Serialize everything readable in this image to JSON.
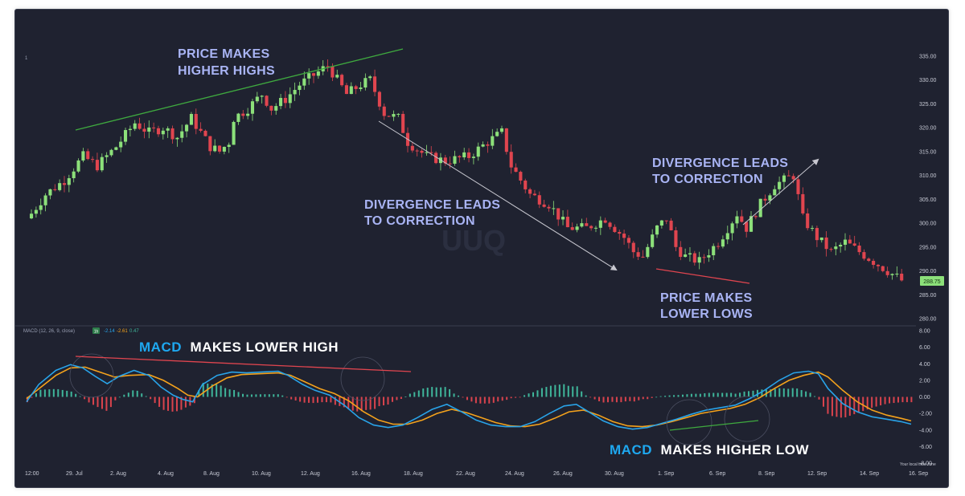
{
  "colors": {
    "background": "#1f2230",
    "up": "#8ce07a",
    "down": "#e0454f",
    "macd_line": "#29a3e8",
    "signal_line": "#f4a21c",
    "hist_up": "#3fb59a",
    "hist_down": "#d9434d",
    "annotation": "#a9b4f4",
    "trend_green": "#3faa3f",
    "trend_red": "#e0454f",
    "arrow": "#c8c8d0"
  },
  "chart_data": [
    {
      "type": "candlestick",
      "ylim": [
        280,
        338
      ],
      "y_ticks": [
        "335.00",
        "330.00",
        "325.00",
        "320.00",
        "315.00",
        "310.00",
        "305.00",
        "300.00",
        "295.00",
        "290.00",
        "285.00",
        "280.00"
      ],
      "price_label": "288.75",
      "close_path": [
        [
          0,
          302
        ],
        [
          3,
          306
        ],
        [
          7,
          309
        ],
        [
          11,
          314
        ],
        [
          14,
          312
        ],
        [
          18,
          316
        ],
        [
          22,
          321
        ],
        [
          25,
          319
        ],
        [
          28,
          320
        ],
        [
          31,
          318
        ],
        [
          34,
          322
        ],
        [
          36,
          319
        ],
        [
          38,
          316
        ],
        [
          40,
          315
        ],
        [
          42,
          317
        ],
        [
          43,
          322
        ],
        [
          46,
          324
        ],
        [
          49,
          327
        ],
        [
          51,
          324
        ],
        [
          54,
          326
        ],
        [
          57,
          329
        ],
        [
          60,
          331
        ],
        [
          63,
          333
        ],
        [
          65,
          330
        ],
        [
          67,
          327
        ],
        [
          70,
          329
        ],
        [
          72,
          330
        ],
        [
          75,
          323
        ],
        [
          78,
          322
        ],
        [
          80,
          317
        ],
        [
          84,
          314
        ],
        [
          88,
          313
        ],
        [
          93,
          314
        ],
        [
          97,
          317
        ],
        [
          100,
          319
        ],
        [
          102,
          312
        ],
        [
          106,
          306
        ],
        [
          110,
          304
        ],
        [
          114,
          299
        ],
        [
          118,
          299
        ],
        [
          122,
          301
        ],
        [
          126,
          297
        ],
        [
          128,
          294
        ],
        [
          130,
          293
        ],
        [
          133,
          299
        ],
        [
          135,
          301
        ],
        [
          137,
          295
        ],
        [
          139,
          293
        ],
        [
          142,
          292
        ],
        [
          146,
          296
        ],
        [
          150,
          302
        ],
        [
          152,
          299
        ],
        [
          155,
          304
        ],
        [
          158,
          308
        ],
        [
          160,
          309
        ],
        [
          162,
          310
        ],
        [
          164,
          301
        ],
        [
          167,
          297
        ],
        [
          170,
          294
        ],
        [
          173,
          296
        ],
        [
          176,
          294
        ],
        [
          179,
          292
        ],
        [
          182,
          290
        ],
        [
          185,
          288
        ]
      ],
      "n_candles": 186
    },
    {
      "type": "line",
      "title": "MACD (12, 26, 9, close)",
      "interval": "1h",
      "readouts": [
        "-2.14",
        "-2.61",
        "0.47"
      ],
      "ylim": [
        -8,
        8
      ],
      "y_ticks": [
        "8.00",
        "6.00",
        "4.00",
        "2.00",
        "0.00",
        "-2.00",
        "-4.00",
        "-6.00",
        "-8.00"
      ],
      "series": [
        {
          "name": "MACD",
          "values": [
            [
              0,
              -0.6
            ],
            [
              5,
              1.5
            ],
            [
              12,
              3.2
            ],
            [
              18,
              3.9
            ],
            [
              23,
              3.5
            ],
            [
              28,
              2.5
            ],
            [
              33,
              1.6
            ],
            [
              38,
              2.5
            ],
            [
              44,
              3.2
            ],
            [
              50,
              2.6
            ],
            [
              55,
              1.2
            ],
            [
              60,
              0.2
            ],
            [
              64,
              -0.3
            ],
            [
              68,
              -0.6
            ],
            [
              72,
              1.5
            ],
            [
              78,
              2.6
            ],
            [
              84,
              3.0
            ],
            [
              90,
              2.9
            ],
            [
              96,
              3.0
            ],
            [
              103,
              3.1
            ],
            [
              107,
              2.6
            ],
            [
              113,
              1.5
            ],
            [
              118,
              0.8
            ],
            [
              124,
              0.2
            ],
            [
              130,
              -1.0
            ],
            [
              136,
              -2.5
            ],
            [
              142,
              -3.4
            ],
            [
              148,
              -3.7
            ],
            [
              154,
              -3.4
            ],
            [
              160,
              -2.5
            ],
            [
              166,
              -1.5
            ],
            [
              172,
              -0.9
            ],
            [
              178,
              -1.8
            ],
            [
              184,
              -2.8
            ],
            [
              190,
              -3.4
            ],
            [
              196,
              -3.6
            ],
            [
              202,
              -3.6
            ],
            [
              208,
              -3.0
            ],
            [
              214,
              -2.0
            ],
            [
              220,
              -1.1
            ],
            [
              225,
              -0.9
            ],
            [
              230,
              -1.8
            ],
            [
              236,
              -2.9
            ],
            [
              242,
              -3.6
            ],
            [
              248,
              -3.9
            ],
            [
              254,
              -3.7
            ],
            [
              260,
              -3.2
            ],
            [
              266,
              -2.7
            ],
            [
              272,
              -2.1
            ],
            [
              278,
              -1.6
            ],
            [
              284,
              -1.3
            ],
            [
              290,
              -1.0
            ],
            [
              296,
              -0.2
            ],
            [
              302,
              0.8
            ],
            [
              308,
              2.0
            ],
            [
              314,
              2.9
            ],
            [
              320,
              3.1
            ],
            [
              324,
              2.8
            ],
            [
              328,
              1.0
            ],
            [
              334,
              -0.8
            ],
            [
              340,
              -1.8
            ],
            [
              346,
              -2.4
            ],
            [
              352,
              -2.7
            ],
            [
              358,
              -3.0
            ],
            [
              362,
              -3.3
            ]
          ]
        },
        {
          "name": "Signal",
          "values": [
            [
              0,
              -0.2
            ],
            [
              6,
              1.2
            ],
            [
              12,
              2.6
            ],
            [
              18,
              3.5
            ],
            [
              24,
              3.6
            ],
            [
              30,
              3.0
            ],
            [
              36,
              2.4
            ],
            [
              42,
              2.6
            ],
            [
              50,
              2.7
            ],
            [
              56,
              2.0
            ],
            [
              62,
              1.0
            ],
            [
              66,
              0.2
            ],
            [
              70,
              0.0
            ],
            [
              76,
              1.3
            ],
            [
              82,
              2.3
            ],
            [
              88,
              2.7
            ],
            [
              96,
              2.8
            ],
            [
              103,
              2.9
            ],
            [
              108,
              2.6
            ],
            [
              114,
              1.8
            ],
            [
              120,
              1.0
            ],
            [
              126,
              0.4
            ],
            [
              132,
              -0.5
            ],
            [
              138,
              -1.8
            ],
            [
              144,
              -2.8
            ],
            [
              150,
              -3.3
            ],
            [
              156,
              -3.3
            ],
            [
              162,
              -2.8
            ],
            [
              168,
              -2.0
            ],
            [
              174,
              -1.5
            ],
            [
              180,
              -1.9
            ],
            [
              186,
              -2.5
            ],
            [
              192,
              -3.1
            ],
            [
              198,
              -3.5
            ],
            [
              204,
              -3.6
            ],
            [
              210,
              -3.3
            ],
            [
              216,
              -2.6
            ],
            [
              222,
              -1.8
            ],
            [
              228,
              -1.6
            ],
            [
              234,
              -2.2
            ],
            [
              240,
              -3.0
            ],
            [
              246,
              -3.5
            ],
            [
              252,
              -3.6
            ],
            [
              258,
              -3.4
            ],
            [
              264,
              -3.0
            ],
            [
              270,
              -2.5
            ],
            [
              276,
              -2.0
            ],
            [
              282,
              -1.7
            ],
            [
              288,
              -1.4
            ],
            [
              294,
              -0.9
            ],
            [
              300,
              -0.1
            ],
            [
              306,
              1.0
            ],
            [
              312,
              2.0
            ],
            [
              318,
              2.6
            ],
            [
              324,
              3.0
            ],
            [
              328,
              2.4
            ],
            [
              334,
              0.8
            ],
            [
              340,
              -0.6
            ],
            [
              346,
              -1.6
            ],
            [
              352,
              -2.2
            ],
            [
              358,
              -2.6
            ],
            [
              362,
              -2.9
            ]
          ]
        }
      ]
    }
  ],
  "x_ticks": [
    "12:00",
    "29. Jul",
    "2. Aug",
    "4. Aug",
    "8. Aug",
    "10. Aug",
    "12. Aug",
    "16. Aug",
    "18. Aug",
    "22. Aug",
    "24. Aug",
    "26. Aug",
    "30. Aug",
    "1. Sep",
    "6. Sep",
    "8. Sep",
    "12. Sep",
    "14. Sep",
    "16. Sep"
  ],
  "annotations": {
    "higher_highs": [
      "PRICE MAKES",
      "HIGHER HIGHS"
    ],
    "divergence_1": [
      "DIVERGENCE LEADS",
      "TO CORRECTION"
    ],
    "divergence_2": [
      "DIVERGENCE LEADS",
      "TO CORRECTION"
    ],
    "lower_lows": [
      "PRICE MAKES",
      "LOWER LOWS"
    ],
    "macd_lower_high": {
      "macd": "MACD",
      "rest": "MAKES LOWER HIGH"
    },
    "macd_higher_low": {
      "macd": "MACD",
      "rest": "MAKES HIGHER LOW"
    }
  },
  "watermark": "UUQ",
  "timezone_note": "Your local time zone"
}
